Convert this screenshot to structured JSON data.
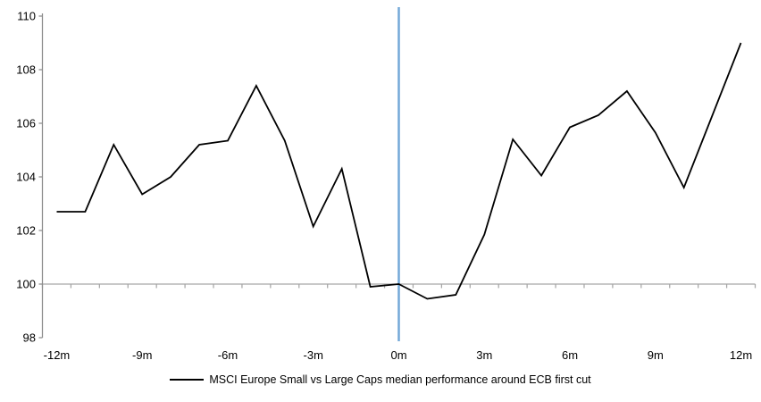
{
  "chart_data": {
    "type": "line",
    "title": "",
    "xlabel": "",
    "ylabel": "",
    "x_unit": "months around ECB first cut",
    "x": [
      -12,
      -11,
      -10,
      -9,
      -8,
      -7,
      -6,
      -5,
      -4,
      -3,
      -2,
      -1,
      0,
      1,
      2,
      3,
      4,
      5,
      6,
      7,
      8,
      9,
      10,
      11,
      12
    ],
    "series": [
      {
        "name": "MSCI Europe Small vs Large Caps median performance around ECB first cut",
        "color": "#000000",
        "values": [
          102.7,
          102.7,
          105.2,
          103.35,
          104.0,
          105.2,
          105.35,
          107.4,
          105.35,
          102.15,
          104.3,
          99.9,
          100.0,
          99.45,
          99.6,
          101.85,
          105.4,
          104.05,
          105.85,
          106.3,
          107.2,
          105.65,
          103.6,
          106.3,
          109.0
        ]
      }
    ],
    "ylim": [
      98,
      110
    ],
    "y_ticks": [
      "98",
      "100",
      "102",
      "104",
      "106",
      "108",
      "110"
    ],
    "x_tick_positions": [
      -12,
      -9,
      -6,
      -3,
      0,
      3,
      6,
      9,
      12
    ],
    "x_tick_labels": [
      "-12m",
      "-9m",
      "-6m",
      "-3m",
      "0m",
      "3m",
      "6m",
      "9m",
      "12m"
    ],
    "reference_lines": [
      {
        "axis": "y",
        "value": 100,
        "color": "#A6A6A6",
        "note": "baseline at 100"
      },
      {
        "axis": "x",
        "value": 0,
        "color": "#74A9D8",
        "note": "vertical line at ECB first cut (0m)"
      }
    ],
    "grid": "off",
    "legend_position": "bottom",
    "colors": {
      "series_line": "#000000",
      "event_line": "#74A9D8",
      "baseline": "#A6A6A6",
      "axis": "#8C8C8C",
      "background": "#FFFFFF"
    }
  },
  "legend": {
    "label": "MSCI Europe Small vs Large Caps median performance around ECB first cut"
  }
}
